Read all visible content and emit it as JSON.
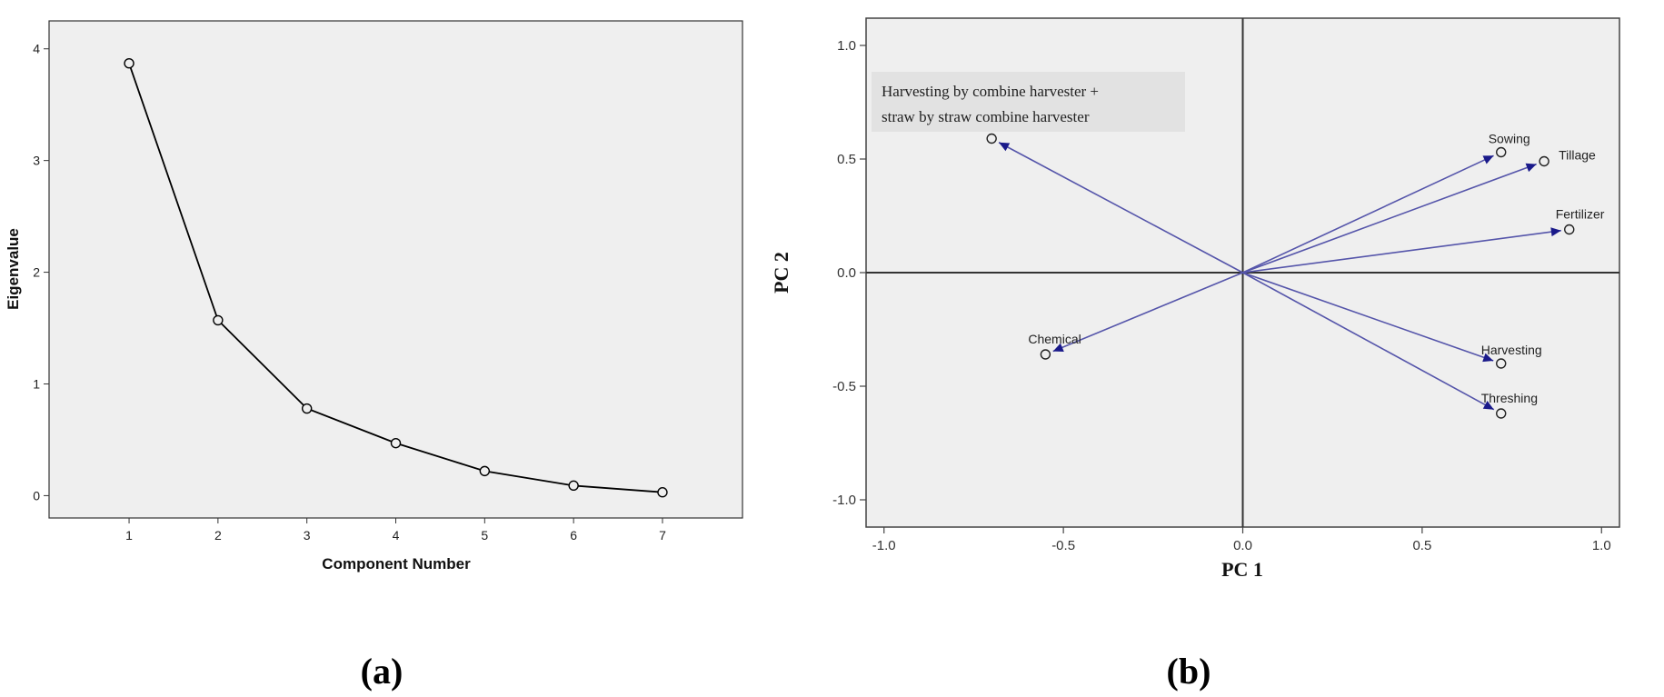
{
  "chart_data": [
    {
      "type": "line",
      "panel_label": "(a)",
      "xlabel": "Component Number",
      "ylabel": "Eigenvalue",
      "x": [
        1,
        2,
        3,
        4,
        5,
        6,
        7
      ],
      "y": [
        3.87,
        1.57,
        0.78,
        0.47,
        0.22,
        0.09,
        0.03
      ],
      "x_ticks": [
        "1",
        "2",
        "3",
        "4",
        "5",
        "6",
        "7"
      ],
      "y_ticks": [
        "0",
        "1",
        "2",
        "3",
        "4"
      ],
      "xlim": [
        0.1,
        7.9
      ],
      "ylim": [
        -0.2,
        4.25
      ],
      "grid": false,
      "marker": "open-circle",
      "background": "#efefef",
      "line_color": "#000000"
    },
    {
      "type": "scatter",
      "panel_label": "(b)",
      "xlabel": "PC 1",
      "ylabel": "PC 2",
      "x_ticks": [
        "-1.0",
        "-0.5",
        "0.0",
        "0.5",
        "1.0"
      ],
      "y_ticks": [
        "1.0",
        "0.5",
        "0.0",
        "-0.5",
        "-1.0"
      ],
      "xlim": [
        -1.05,
        1.05
      ],
      "ylim": [
        -1.12,
        1.12
      ],
      "grid": false,
      "arrow_color": "#5555aa",
      "arrowhead_color": "#1a1a8a",
      "background": "#efefef",
      "note": [
        "Harvesting  by  combine  harvester  +",
        "straw  by  straw  combine  harvester"
      ],
      "points": [
        {
          "name": "Sowing",
          "x": 0.72,
          "y": 0.53
        },
        {
          "name": "Tillage",
          "x": 0.84,
          "y": 0.49
        },
        {
          "name": "Fertilizer",
          "x": 0.91,
          "y": 0.19
        },
        {
          "name": "Harvesting",
          "x": 0.72,
          "y": -0.4
        },
        {
          "name": "Threshing",
          "x": 0.72,
          "y": -0.62
        },
        {
          "name": "Chemical",
          "x": -0.55,
          "y": -0.36
        },
        {
          "name": "",
          "x": -0.7,
          "y": 0.59
        }
      ]
    }
  ]
}
